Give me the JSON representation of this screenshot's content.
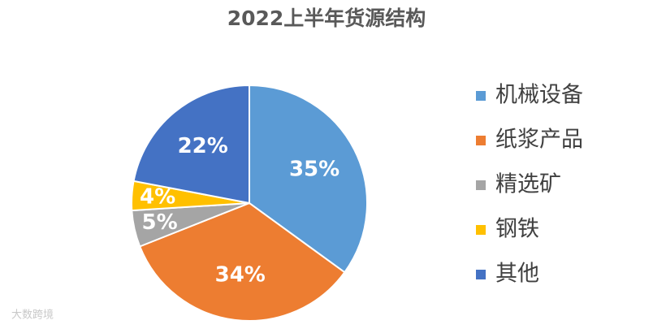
{
  "chart_data": {
    "type": "pie",
    "title": "2022上半年货源结构",
    "categories": [
      "机械设备",
      "纸浆产品",
      "精选矿",
      "钢铁",
      "其他"
    ],
    "values": [
      35,
      34,
      5,
      4,
      22
    ],
    "value_labels": [
      "35%",
      "34%",
      "5%",
      "4%",
      "22%"
    ],
    "colors": [
      "#5b9bd5",
      "#ed7d31",
      "#a5a5a5",
      "#ffc000",
      "#4472c4"
    ],
    "legend": "right"
  },
  "watermark": "大数跨境"
}
